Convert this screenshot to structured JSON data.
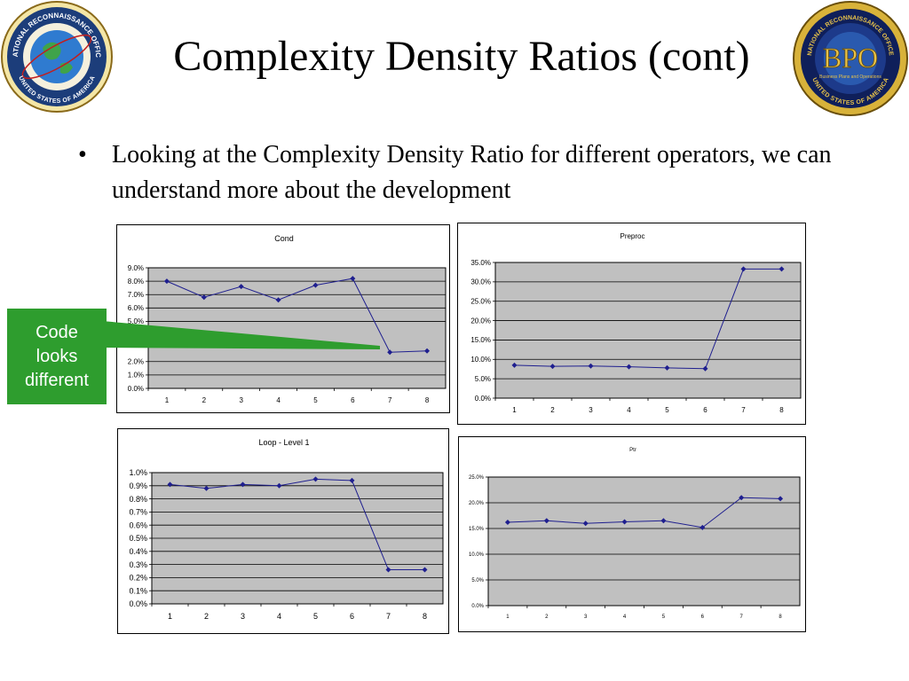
{
  "slide": {
    "title": "Complexity Density Ratios (cont)",
    "bullet": "Looking at the Complexity Density Ratio for different operators, we can understand more about the development",
    "bullet_marker": "•",
    "callout": "Code\nlooks\ndifferent"
  },
  "logos": {
    "left": {
      "name": "nro-seal",
      "text_top": "NATIONAL RECONNAISSANCE OFFICE",
      "text_bottom": "UNITED STATES OF AMERICA"
    },
    "right": {
      "name": "bpo-seal",
      "abbr": "BPO",
      "text_top": "NATIONAL RECONNAISSANCE OFFICE",
      "subtitle": "Business Plans and Operations",
      "text_bottom": "UNITED STATES OF AMERICA"
    }
  },
  "colors": {
    "plot_bg": "#c0c0c0",
    "line": "#1f1f8f",
    "callout": "#2e9d2e"
  },
  "chart_data": [
    {
      "id": "cond",
      "type": "line",
      "title": "Cond",
      "categories": [
        "1",
        "2",
        "3",
        "4",
        "5",
        "6",
        "7",
        "8"
      ],
      "values": [
        0.08,
        0.068,
        0.076,
        0.066,
        0.077,
        0.082,
        0.027,
        0.028
      ],
      "ylim": [
        0,
        0.09
      ],
      "yticks": [
        0,
        0.01,
        0.02,
        0.05,
        0.06,
        0.07,
        0.08,
        0.09
      ],
      "ytick_labels": [
        "0.0%",
        "1.0%",
        "2.0%",
        "5.0%",
        "6.0%",
        "7.0%",
        "8.0%",
        "9.0%"
      ],
      "grid": true
    },
    {
      "id": "preproc",
      "type": "line",
      "title": "Preproc",
      "categories": [
        "1",
        "2",
        "3",
        "4",
        "5",
        "6",
        "7",
        "8"
      ],
      "values": [
        0.085,
        0.082,
        0.083,
        0.081,
        0.078,
        0.076,
        0.333,
        0.333
      ],
      "ylim": [
        0,
        0.35
      ],
      "yticks": [
        0,
        0.05,
        0.1,
        0.15,
        0.2,
        0.25,
        0.3,
        0.35
      ],
      "ytick_labels": [
        "0.0%",
        "5.0%",
        "10.0%",
        "15.0%",
        "20.0%",
        "25.0%",
        "30.0%",
        "35.0%"
      ],
      "grid": true
    },
    {
      "id": "loop",
      "type": "line",
      "title": "Loop - Level 1",
      "categories": [
        "1",
        "2",
        "3",
        "4",
        "5",
        "6",
        "7",
        "8"
      ],
      "values": [
        0.0091,
        0.0088,
        0.0091,
        0.009,
        0.0095,
        0.0094,
        0.0026,
        0.0026
      ],
      "ylim": [
        0,
        0.01
      ],
      "yticks": [
        0,
        0.001,
        0.002,
        0.003,
        0.004,
        0.005,
        0.006,
        0.007,
        0.008,
        0.009,
        0.01
      ],
      "ytick_labels": [
        "0.0%",
        "0.1%",
        "0.2%",
        "0.3%",
        "0.4%",
        "0.5%",
        "0.6%",
        "0.7%",
        "0.8%",
        "0.9%",
        "1.0%"
      ],
      "grid": true
    },
    {
      "id": "ptr",
      "type": "line",
      "title": "Ptr",
      "categories": [
        "1",
        "2",
        "3",
        "4",
        "5",
        "6",
        "7",
        "8"
      ],
      "values": [
        0.162,
        0.165,
        0.16,
        0.163,
        0.165,
        0.152,
        0.21,
        0.208
      ],
      "ylim": [
        0,
        0.25
      ],
      "yticks": [
        0,
        0.05,
        0.1,
        0.15,
        0.2,
        0.25
      ],
      "ytick_labels": [
        "0.0%",
        "5.0%",
        "10.0%",
        "15.0%",
        "20.0%",
        "25.0%"
      ],
      "grid": true
    }
  ]
}
